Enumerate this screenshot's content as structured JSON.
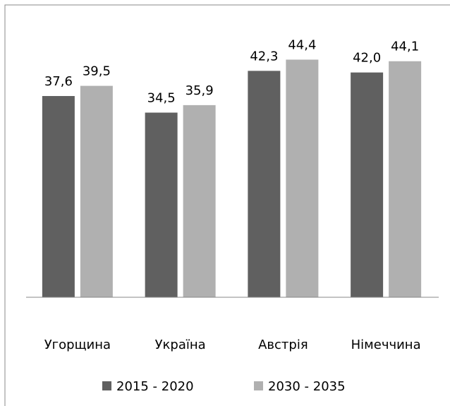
{
  "chart_data": {
    "type": "bar",
    "categories": [
      "Угорщина",
      "Україна",
      "Австрія",
      "Німеччина"
    ],
    "series": [
      {
        "name": "2015 - 2020",
        "color": "#606060",
        "values": [
          37.6,
          34.5,
          42.3,
          42.0
        ],
        "value_labels": [
          "37,6",
          "34,5",
          "42,3",
          "42,0"
        ]
      },
      {
        "name": "2030 - 2035",
        "color": "#b0b0b0",
        "values": [
          39.5,
          35.9,
          44.4,
          44.1
        ],
        "value_labels": [
          "39,5",
          "35,9",
          "44,4",
          "44,1"
        ]
      }
    ],
    "ylim": [
      0,
      50
    ]
  }
}
